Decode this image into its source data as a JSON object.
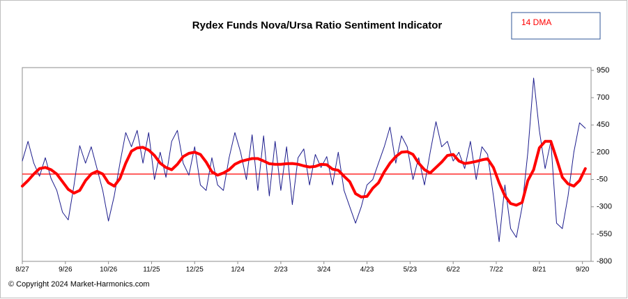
{
  "chart_data": {
    "type": "line",
    "title": "Rydex Funds Nova/Ursa Ratio Sentiment Indicator",
    "copyright": "© Copyright 2024 Market-Harmonics.com",
    "x": [
      0,
      4,
      8,
      12,
      16,
      20,
      24,
      28,
      32,
      36,
      40,
      44,
      48,
      52,
      56,
      60,
      64,
      68,
      72,
      76,
      80,
      84,
      88,
      92,
      96,
      100,
      104,
      108,
      112,
      116,
      120,
      124,
      128,
      132,
      136,
      140,
      144,
      148,
      152,
      156,
      160,
      164,
      168,
      172,
      176,
      180,
      184,
      188,
      192,
      196,
      200,
      204,
      208,
      212,
      216,
      220,
      224,
      228,
      232,
      236,
      240,
      244,
      248,
      252,
      256,
      260,
      264,
      268,
      272,
      276,
      280,
      284,
      288,
      292,
      296,
      300,
      304,
      308,
      312,
      316,
      320,
      324,
      328,
      332,
      336,
      340,
      344,
      348,
      352,
      356,
      360,
      364,
      368,
      372,
      376,
      380,
      384,
      388,
      392
    ],
    "series": [
      {
        "color": "#1c1c8c",
        "width": 1,
        "values": [
          120,
          300,
          100,
          -20,
          150,
          -40,
          -150,
          -350,
          -420,
          -100,
          260,
          100,
          250,
          50,
          -150,
          -430,
          -200,
          100,
          380,
          250,
          400,
          100,
          380,
          -50,
          200,
          -30,
          300,
          400,
          100,
          -10,
          250,
          -100,
          -150,
          150,
          -100,
          -150,
          150,
          380,
          200,
          -50,
          360,
          -150,
          350,
          -200,
          300,
          -150,
          250,
          -280,
          150,
          230,
          -100,
          180,
          60,
          160,
          -100,
          200,
          -150,
          -300,
          -450,
          -300,
          -100,
          -50,
          100,
          250,
          430,
          100,
          350,
          250,
          -50,
          150,
          -100,
          200,
          480,
          250,
          300,
          120,
          200,
          50,
          300,
          -50,
          250,
          180,
          -200,
          -620,
          -100,
          -500,
          -580,
          -300,
          200,
          880,
          400,
          50,
          300,
          -450,
          -500,
          -200,
          200,
          470,
          420
        ]
      },
      {
        "name": "14 DMA",
        "color": "#ff0000",
        "width": 4,
        "values": [
          -110,
          -60,
          0,
          50,
          60,
          40,
          0,
          -70,
          -140,
          -175,
          -150,
          -60,
          0,
          25,
          0,
          -80,
          -110,
          -40,
          100,
          210,
          240,
          245,
          220,
          170,
          100,
          60,
          40,
          90,
          160,
          190,
          200,
          180,
          110,
          20,
          -10,
          10,
          40,
          90,
          115,
          130,
          142,
          142,
          120,
          95,
          90,
          90,
          95,
          97,
          90,
          75,
          65,
          70,
          90,
          85,
          45,
          35,
          -20,
          -70,
          -180,
          -210,
          -205,
          -130,
          -80,
          20,
          100,
          160,
          200,
          205,
          180,
          100,
          40,
          10,
          60,
          110,
          170,
          180,
          120,
          97,
          105,
          116,
          130,
          140,
          60,
          -80,
          -200,
          -270,
          -285,
          -260,
          -60,
          40,
          240,
          300,
          300,
          140,
          -30,
          -90,
          -110,
          -60,
          50
        ]
      }
    ],
    "reference_line": {
      "value": 0,
      "color": "#ff0000"
    },
    "xlim": [
      0,
      396
    ],
    "xticks": [
      {
        "value": 0,
        "label": "8/27"
      },
      {
        "value": 30,
        "label": "9/26"
      },
      {
        "value": 60,
        "label": "10/26"
      },
      {
        "value": 90,
        "label": "11/25"
      },
      {
        "value": 120,
        "label": "12/25"
      },
      {
        "value": 150,
        "label": "1/24"
      },
      {
        "value": 180,
        "label": "2/23"
      },
      {
        "value": 210,
        "label": "3/24"
      },
      {
        "value": 240,
        "label": "4/23"
      },
      {
        "value": 270,
        "label": "5/23"
      },
      {
        "value": 300,
        "label": "6/22"
      },
      {
        "value": 330,
        "label": "7/22"
      },
      {
        "value": 360,
        "label": "8/21"
      },
      {
        "value": 390,
        "label": "9/20"
      }
    ],
    "ylim": [
      -800,
      950
    ],
    "yticks": [
      950,
      700,
      450,
      200,
      -50,
      -300,
      -550,
      -800
    ],
    "legend": "top-right"
  }
}
